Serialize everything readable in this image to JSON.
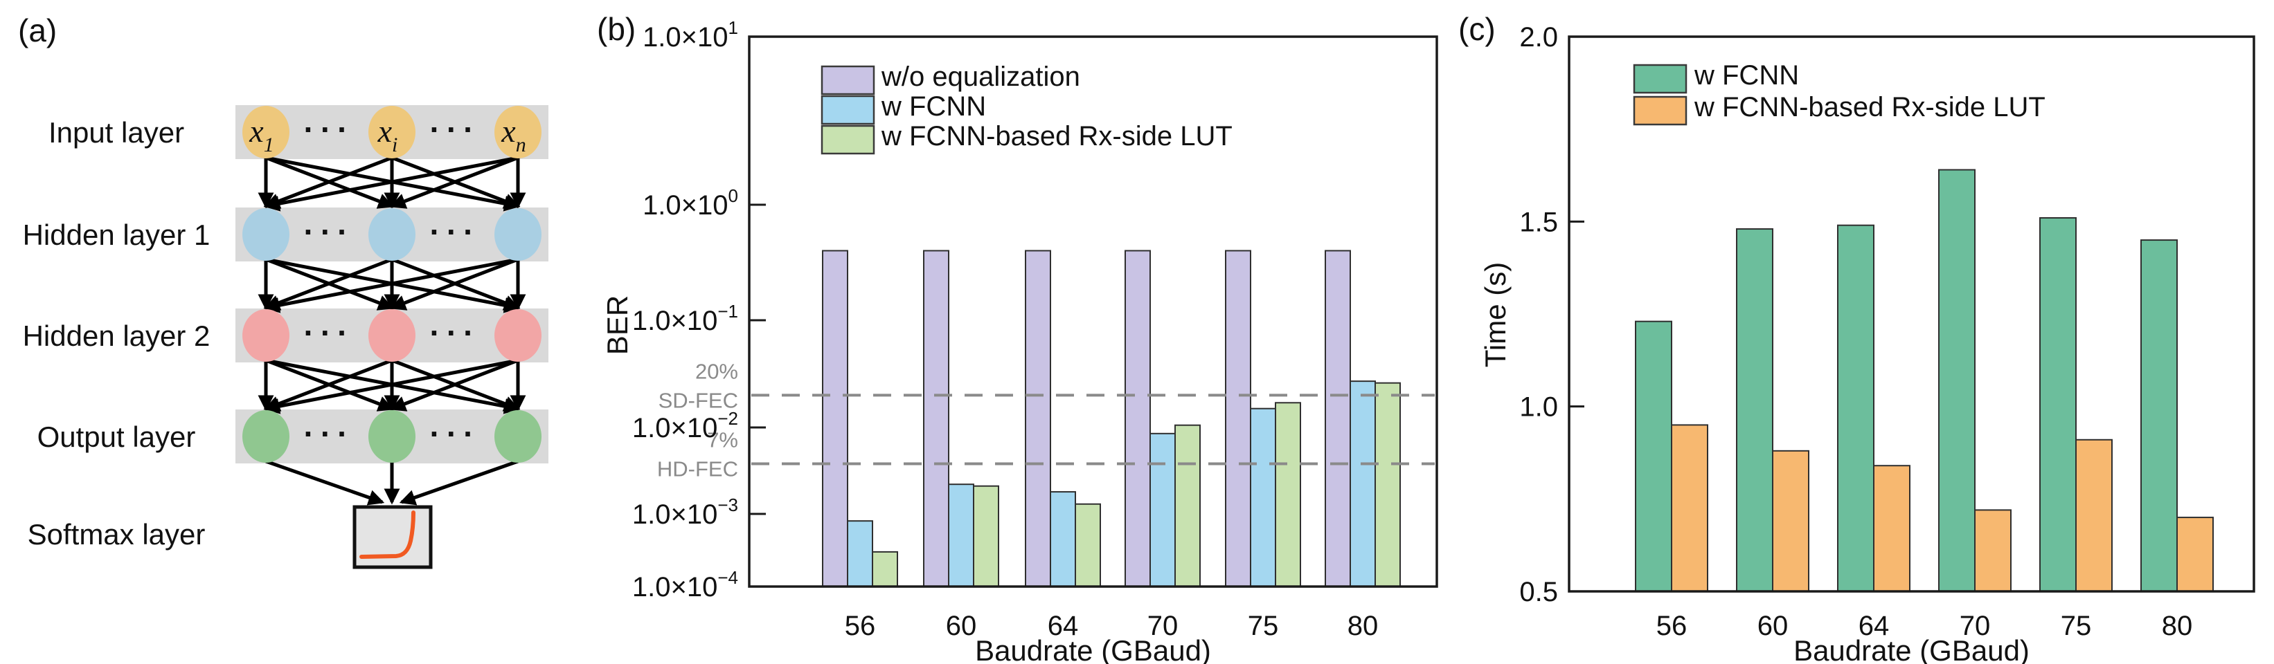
{
  "figure": {
    "background": "#ffffff"
  },
  "panel_a": {
    "label": "(a)",
    "layer_labels": [
      "Input layer",
      "Hidden layer 1",
      "Hidden layer 2",
      "Output layer",
      "Softmax layer"
    ],
    "input_node_labels": [
      {
        "main": "x",
        "sub": "1"
      },
      {
        "main": "x",
        "sub": "i"
      },
      {
        "main": "x",
        "sub": "n"
      }
    ],
    "dots": "···",
    "colors": {
      "band": "#d9d9d9",
      "input_node": "#eec87c",
      "hidden1_node": "#a9cfe3",
      "hidden2_node": "#f2a6a6",
      "output_node": "#90c790",
      "softmax_fill": "#e4e4e4",
      "softmax_curve": "#f15a22",
      "arrow": "#000000"
    }
  },
  "chart_data": [
    {
      "panel_label": "(b)",
      "type": "bar",
      "yscale": "log",
      "title": "",
      "xlabel": "Baudrate (GBaud)",
      "ylabel": "BER",
      "ylim": [
        0.0001,
        10
      ],
      "grid": false,
      "legend_position": "top-left-inside",
      "categories": [
        "56",
        "60",
        "64",
        "70",
        "75",
        "80"
      ],
      "ytick_labels": [
        {
          "main": "1.0×10",
          "sup": "1",
          "exp": 1
        },
        {
          "main": "1.0×10",
          "sup": "0",
          "exp": 0
        },
        {
          "main": "1.0×10",
          "sup": "−1",
          "exp": -1
        },
        {
          "main": "1.0×10",
          "sup": "−2",
          "exp": -2
        },
        {
          "main": "1.0×10",
          "sup": "−3",
          "exp": -3
        },
        {
          "main": "1.0×10",
          "sup": "−4",
          "exp": -4
        }
      ],
      "series": [
        {
          "name": "w/o equalization",
          "color": "#c9c3e4",
          "values": [
            0.4,
            0.4,
            0.4,
            0.4,
            0.4,
            0.4
          ]
        },
        {
          "name": "w FCNN",
          "color": "#a4d7f0",
          "values": [
            0.0008,
            0.0022,
            0.0018,
            0.0085,
            0.015,
            0.027
          ]
        },
        {
          "name": "w FCNN-based Rx-side LUT",
          "color": "#c8e2b0",
          "values": [
            0.0003,
            0.0021,
            0.0013,
            0.0105,
            0.017,
            0.026
          ]
        }
      ],
      "thresholds": [
        {
          "lines": [
            "20%",
            "SD-FEC"
          ],
          "value": 0.02
        },
        {
          "lines": [
            "7%",
            "HD-FEC"
          ],
          "value": 0.0038
        }
      ]
    },
    {
      "panel_label": "(c)",
      "type": "bar",
      "yscale": "linear",
      "title": "",
      "xlabel": "Baudrate (GBaud)",
      "ylabel": "Time (s)",
      "ylim": [
        0.5,
        2.0
      ],
      "grid": false,
      "legend_position": "top-left-inside",
      "categories": [
        "56",
        "60",
        "64",
        "70",
        "75",
        "80"
      ],
      "yticks": [
        {
          "label": "0.5",
          "value": 0.5
        },
        {
          "label": "1.0",
          "value": 1.0
        },
        {
          "label": "1.5",
          "value": 1.5
        },
        {
          "label": "2.0",
          "value": 2.0
        }
      ],
      "series": [
        {
          "name": "w FCNN",
          "color": "#6cbe9c",
          "values": [
            1.23,
            1.48,
            1.49,
            1.64,
            1.51,
            1.45
          ]
        },
        {
          "name": "w FCNN-based Rx-side LUT",
          "color": "#f7b870",
          "values": [
            0.95,
            0.88,
            0.84,
            0.72,
            0.91,
            0.7
          ]
        }
      ]
    }
  ]
}
